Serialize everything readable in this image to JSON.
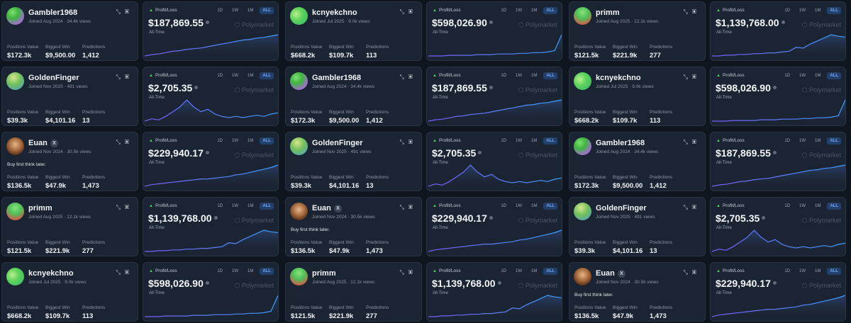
{
  "tabs": [
    "1D",
    "1W",
    "1M",
    "ALL"
  ],
  "active_tab": "ALL",
  "pnl_label": "Profit/Loss",
  "all_time": "All-Time",
  "brand": "Polymarket",
  "stat_labels": [
    "Positions Value",
    "Biggest Win",
    "Predictions"
  ],
  "colors": {
    "line_start": "#7b5cff",
    "line_end": "#3aa0ff",
    "accent": "#3fcf6b"
  },
  "traders": {
    "gambler": {
      "name": "Gambler1968",
      "joined": "Joined Aug 2024 · 34.4k views",
      "avatar": "av-green",
      "positions": "$172.3k",
      "biggest": "$9,500.00",
      "predictions": "1,412",
      "pnl": "$187,869.55",
      "series": [
        10,
        12,
        13,
        15,
        17,
        18,
        20,
        21,
        22,
        24,
        26,
        28,
        30,
        32,
        34,
        35,
        37,
        38,
        40,
        42
      ]
    },
    "kcny": {
      "name": "kcnyekchno",
      "joined": "Joined Jul 2025 · 9.0k views",
      "avatar": "av-lime",
      "positions": "$668.2k",
      "biggest": "$109.7k",
      "predictions": "113",
      "pnl": "$598,026.90",
      "series": [
        2,
        2,
        2,
        3,
        3,
        3,
        3,
        4,
        4,
        4,
        5,
        5,
        5,
        6,
        6,
        7,
        7,
        8,
        10,
        34
      ]
    },
    "primm": {
      "name": "primm",
      "joined": "Joined Aug 2025 · 12.1k views",
      "avatar": "av-red",
      "positions": "$121.5k",
      "biggest": "$221.9k",
      "predictions": "277",
      "pnl": "$1,139,768.00",
      "series": [
        3,
        3,
        4,
        4,
        5,
        5,
        6,
        6,
        7,
        7,
        8,
        9,
        14,
        13,
        18,
        22,
        26,
        30,
        28,
        27
      ]
    },
    "golden": {
      "name": "GoldenFinger",
      "joined": "Joined Nov 2025 · 491 views",
      "avatar": "av-gold",
      "positions": "$39.3k",
      "biggest": "$4,101.16",
      "predictions": "13",
      "pnl": "$2,705.35",
      "series": [
        12,
        14,
        13,
        16,
        20,
        24,
        30,
        24,
        20,
        22,
        18,
        16,
        15,
        16,
        15,
        16,
        17,
        16,
        18,
        19
      ]
    },
    "euan": {
      "name": "Euan",
      "x_badge": "X",
      "bio": "Buy first think later.",
      "joined": "Joined Nov 2024 · 30.5k views",
      "avatar": "av-photo",
      "positions": "$136.5k",
      "biggest": "$47.9k",
      "predictions": "1,473",
      "pnl": "$229,940.17",
      "series": [
        6,
        8,
        9,
        10,
        11,
        12,
        13,
        14,
        15,
        15,
        16,
        17,
        18,
        20,
        21,
        23,
        25,
        27,
        29,
        32
      ]
    }
  },
  "layout": [
    [
      "gambler",
      "kcny",
      "primm"
    ],
    [
      "golden",
      "gambler",
      "kcny"
    ],
    [
      "euan",
      "golden",
      "gambler"
    ],
    [
      "primm",
      "euan",
      "golden"
    ],
    [
      "kcny",
      "primm",
      "euan"
    ]
  ]
}
